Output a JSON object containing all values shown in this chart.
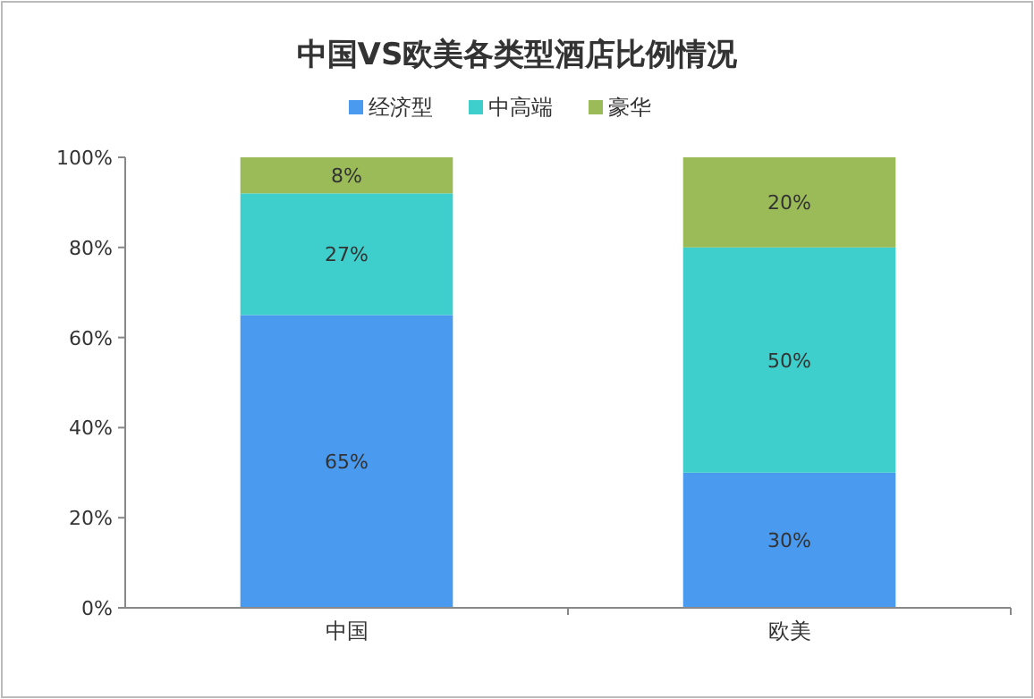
{
  "chart_data": {
    "type": "bar",
    "stacked": true,
    "title": "中国VS欧美各类型酒店比例情况",
    "categories": [
      "中国",
      "欧美"
    ],
    "series": [
      {
        "name": "经济型",
        "color": "#4a9af0",
        "values": [
          65,
          30
        ],
        "value_labels": [
          "65%",
          "30%"
        ]
      },
      {
        "name": "中高端",
        "color": "#3ecfcc",
        "values": [
          27,
          50
        ],
        "value_labels": [
          "27%",
          "50%"
        ]
      },
      {
        "name": "豪华",
        "color": "#9bbb59",
        "values": [
          8,
          20
        ],
        "value_labels": [
          "8%",
          "20%"
        ]
      }
    ],
    "ylim": [
      0,
      100
    ],
    "yticks": [
      {
        "value": 0,
        "label": "0%"
      },
      {
        "value": 20,
        "label": "20%"
      },
      {
        "value": 40,
        "label": "40%"
      },
      {
        "value": 60,
        "label": "60%"
      },
      {
        "value": 80,
        "label": "80%"
      },
      {
        "value": 100,
        "label": "100%"
      }
    ],
    "grid": false,
    "legend": "top"
  }
}
